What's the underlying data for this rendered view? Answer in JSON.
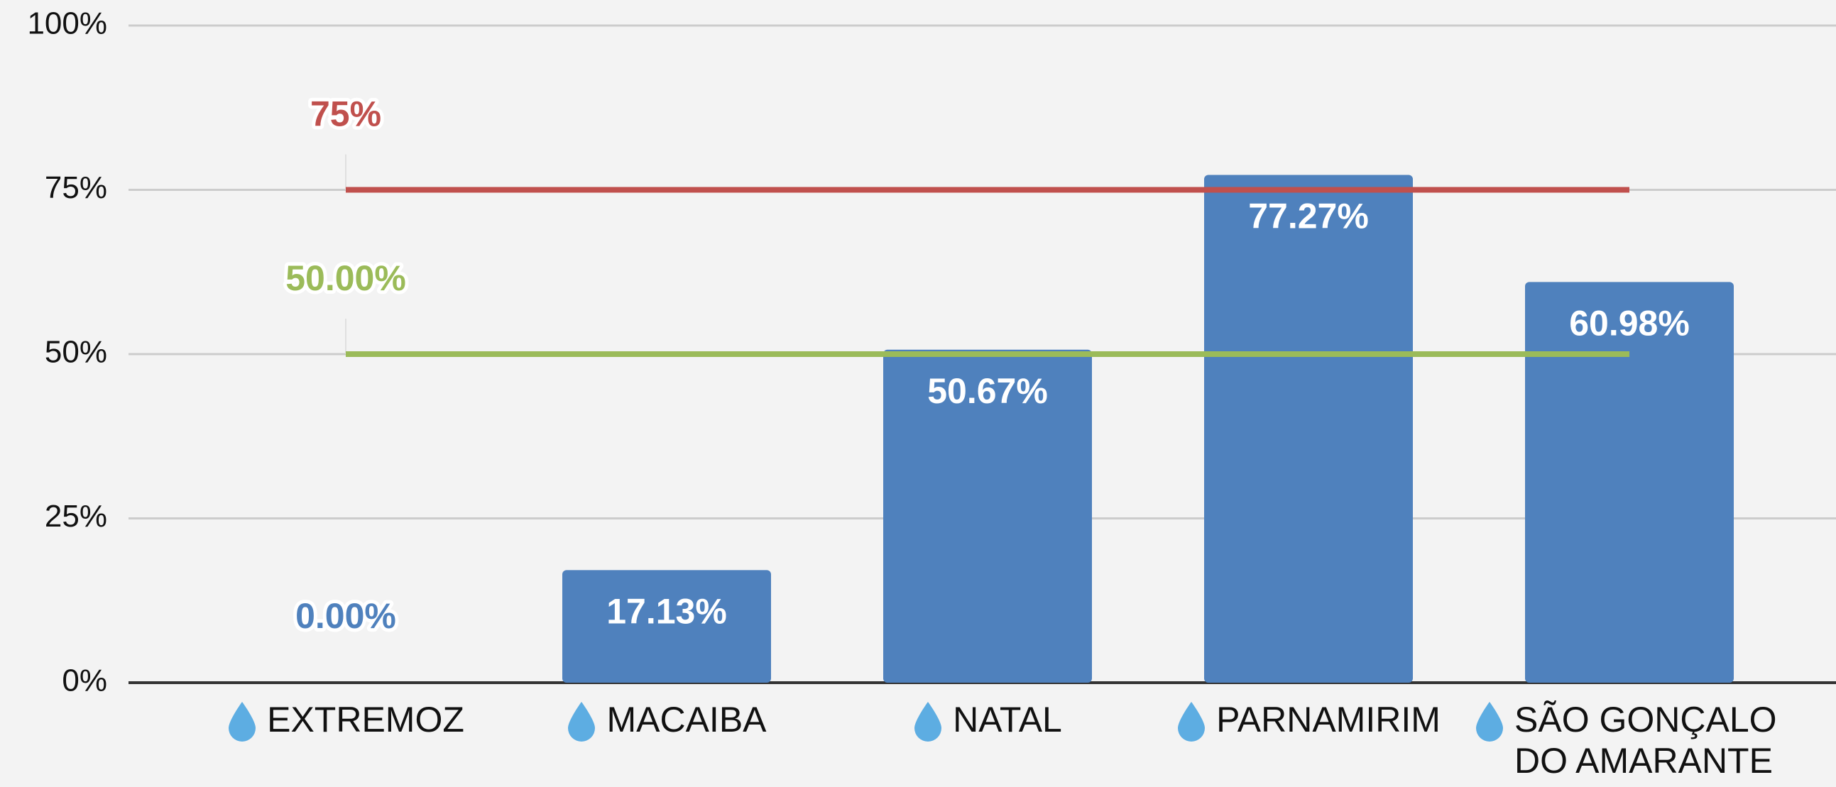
{
  "chart_data": {
    "type": "bar",
    "categories": [
      "EXTREMOZ",
      "MACAIBA",
      "NATAL",
      "PARNAMIRIM",
      "SÃO GONÇALO DO AMARANTE"
    ],
    "values": [
      0,
      17.13,
      50.67,
      77.27,
      60.98
    ],
    "value_labels": [
      "0.00%",
      "17.13%",
      "50.67%",
      "77.27%",
      "60.98%"
    ],
    "color": "#4f81bd",
    "ylim": [
      0,
      100
    ],
    "yticks": [
      {
        "value": 0,
        "label": "0%"
      },
      {
        "value": 25,
        "label": "25%"
      },
      {
        "value": 50,
        "label": "50%"
      },
      {
        "value": 75,
        "label": "75%"
      },
      {
        "value": 100,
        "label": "100%"
      }
    ],
    "grid": true,
    "reference_lines": [
      {
        "value": 75,
        "label": "75%",
        "color": "#c0504d"
      },
      {
        "value": 50,
        "label": "50.00%",
        "color": "#9bbb59"
      }
    ]
  }
}
